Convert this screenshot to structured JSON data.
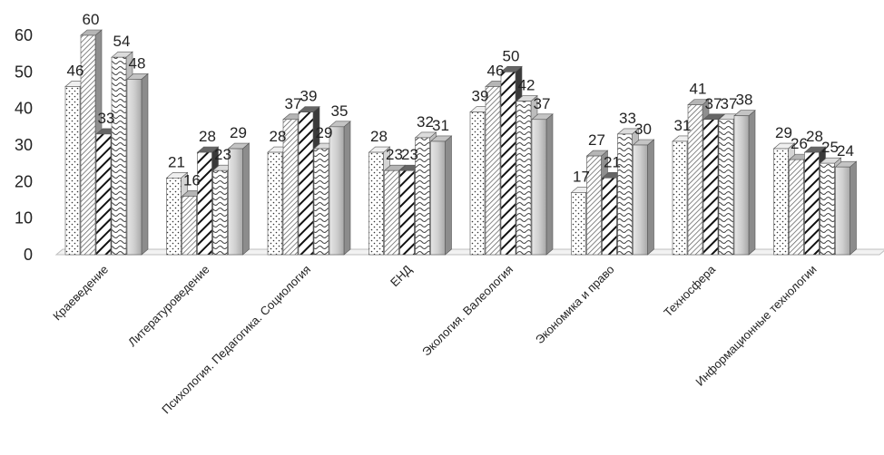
{
  "chart_data": {
    "type": "bar",
    "title": "",
    "xlabel": "",
    "ylabel": "",
    "ylim": [
      0,
      60
    ],
    "yticks": [
      0,
      10,
      20,
      30,
      40,
      50,
      60
    ],
    "grid": false,
    "style": "3d-clustered-bar",
    "categories": [
      "Краеведение",
      "Литературоведение",
      "Психология. Педагогика. Социология",
      "ЕНД",
      "Экология. Валеология",
      "Экономика и право",
      "Техносфера",
      "Информационные технологии"
    ],
    "series": [
      {
        "pattern": "dots",
        "values": [
          46,
          21,
          28,
          28,
          39,
          17,
          31,
          29
        ]
      },
      {
        "pattern": "diagonal-fine",
        "values": [
          60,
          16,
          37,
          23,
          46,
          27,
          41,
          26
        ]
      },
      {
        "pattern": "diagonal-bold",
        "values": [
          33,
          28,
          39,
          23,
          50,
          21,
          37,
          28
        ]
      },
      {
        "pattern": "wave",
        "values": [
          54,
          23,
          29,
          32,
          42,
          33,
          37,
          25
        ]
      },
      {
        "pattern": "gradient-gray",
        "values": [
          48,
          29,
          35,
          31,
          37,
          30,
          38,
          24
        ]
      }
    ]
  }
}
